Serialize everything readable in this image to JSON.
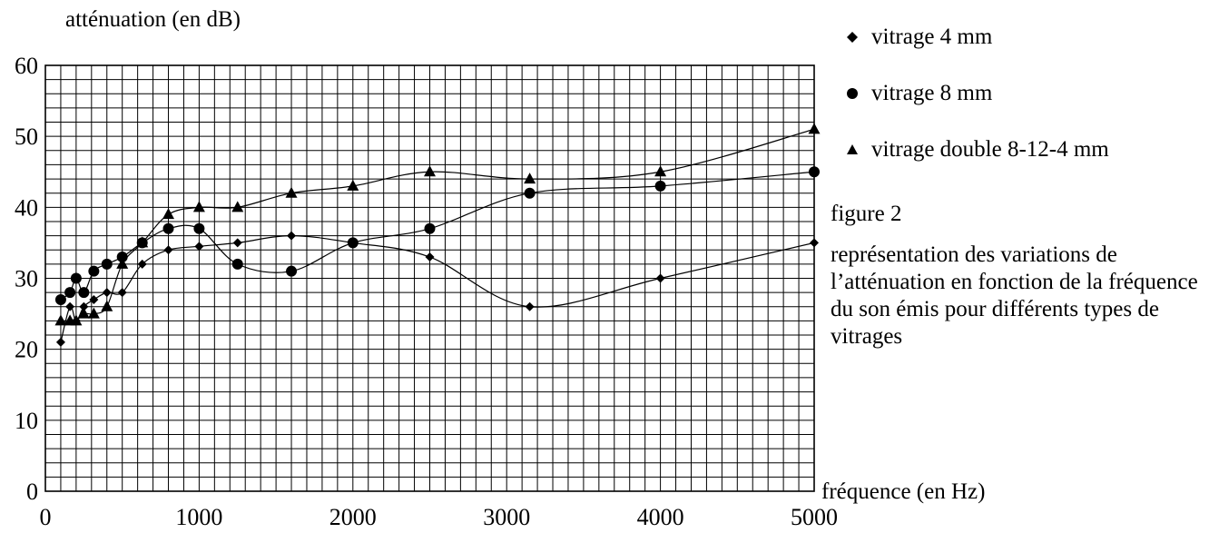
{
  "chart_data": {
    "type": "line",
    "ylabel": "atténuation (en dB)",
    "xlabel": "fréquence (en Hz)",
    "xlim": [
      0,
      5000
    ],
    "ylim": [
      0,
      60
    ],
    "x_ticks": [
      0,
      1000,
      2000,
      3000,
      4000,
      5000
    ],
    "y_ticks": [
      0,
      10,
      20,
      30,
      40,
      50,
      60
    ],
    "grid": true,
    "legend_position": "top-right",
    "series": [
      {
        "name": "vitrage 4 mm",
        "marker": "diamond",
        "points": [
          [
            100,
            21
          ],
          [
            160,
            26
          ],
          [
            200,
            24
          ],
          [
            250,
            26
          ],
          [
            315,
            27
          ],
          [
            400,
            28
          ],
          [
            500,
            28
          ],
          [
            630,
            32
          ],
          [
            800,
            34
          ],
          [
            1000,
            34.5
          ],
          [
            1250,
            35
          ],
          [
            1600,
            36
          ],
          [
            2000,
            35
          ],
          [
            2500,
            33
          ],
          [
            3150,
            26
          ],
          [
            4000,
            30
          ],
          [
            5000,
            35
          ]
        ]
      },
      {
        "name": "vitrage 8 mm",
        "marker": "circle",
        "points": [
          [
            100,
            27
          ],
          [
            160,
            28
          ],
          [
            200,
            30
          ],
          [
            250,
            28
          ],
          [
            315,
            31
          ],
          [
            400,
            32
          ],
          [
            500,
            33
          ],
          [
            630,
            35
          ],
          [
            800,
            37
          ],
          [
            1000,
            37
          ],
          [
            1250,
            32
          ],
          [
            1600,
            31
          ],
          [
            2000,
            35
          ],
          [
            2500,
            37
          ],
          [
            3150,
            42
          ],
          [
            4000,
            43
          ],
          [
            5000,
            45
          ]
        ]
      },
      {
        "name": "vitrage double 8-12-4 mm",
        "marker": "triangle",
        "points": [
          [
            100,
            24
          ],
          [
            160,
            24
          ],
          [
            200,
            24
          ],
          [
            250,
            25
          ],
          [
            315,
            25
          ],
          [
            400,
            26
          ],
          [
            500,
            32
          ],
          [
            630,
            35
          ],
          [
            800,
            39
          ],
          [
            1000,
            40
          ],
          [
            1250,
            40
          ],
          [
            1600,
            42
          ],
          [
            2000,
            43
          ],
          [
            2500,
            45
          ],
          [
            3150,
            44
          ],
          [
            4000,
            45
          ],
          [
            5000,
            51
          ]
        ]
      }
    ]
  },
  "figure_label": "figure 2",
  "caption": "représentation des variations de l’atténuation en fonction de la fréquence du son émis pour différents types de vitrages"
}
